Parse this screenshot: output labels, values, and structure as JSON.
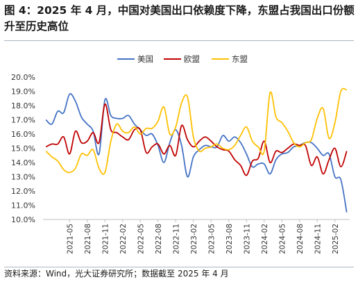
{
  "title": "图 4：2025 年 4 月，中国对美国出口依赖度下降，东盟占我国出口份额升至历史高位",
  "source": "资料来源：Wind，光大证券研究所；数据截至 2025 年 4 月",
  "chart_data": {
    "type": "line",
    "title": "",
    "xlabel": "",
    "ylabel": "",
    "ylim": [
      10,
      20
    ],
    "y_ticks": [
      "20.0%",
      "19.0%",
      "18.0%",
      "17.0%",
      "16.0%",
      "15.0%",
      "14.0%",
      "13.0%",
      "12.0%",
      "11.0%",
      "10.0%"
    ],
    "y_unit": "%",
    "x_tick_labels": [
      "2021-05",
      "2021-08",
      "2021-11",
      "2022-02",
      "2022-05",
      "2022-08",
      "2022-11",
      "2023-02",
      "2023-05",
      "2023-08",
      "2023-11",
      "2024-02",
      "2024-05",
      "2024-08",
      "2024-11",
      "2025-02"
    ],
    "legend_position": "top-center",
    "grid": false,
    "x": [
      "2021-01",
      "2021-02",
      "2021-03",
      "2021-04",
      "2021-05",
      "2021-06",
      "2021-07",
      "2021-08",
      "2021-09",
      "2021-10",
      "2021-11",
      "2021-12",
      "2022-01",
      "2022-02",
      "2022-03",
      "2022-04",
      "2022-05",
      "2022-06",
      "2022-07",
      "2022-08",
      "2022-09",
      "2022-10",
      "2022-11",
      "2022-12",
      "2023-01",
      "2023-02",
      "2023-03",
      "2023-04",
      "2023-05",
      "2023-06",
      "2023-07",
      "2023-08",
      "2023-09",
      "2023-10",
      "2023-11",
      "2023-12",
      "2024-01",
      "2024-02",
      "2024-03",
      "2024-04",
      "2024-05",
      "2024-06",
      "2024-07",
      "2024-08",
      "2024-09",
      "2024-10",
      "2024-11",
      "2024-12",
      "2025-01",
      "2025-02",
      "2025-03",
      "2025-04"
    ],
    "series": [
      {
        "name": "美国",
        "color": "#4472c4",
        "values": [
          17.0,
          16.7,
          17.6,
          17.5,
          18.8,
          18.3,
          17.2,
          16.7,
          16.2,
          14.6,
          18.4,
          17.3,
          17.1,
          17.1,
          17.3,
          16.7,
          16.3,
          15.9,
          16.0,
          15.2,
          14.0,
          15.4,
          16.3,
          15.2,
          13.0,
          14.4,
          14.9,
          15.2,
          15.1,
          15.1,
          15.9,
          15.5,
          15.8,
          15.4,
          14.6,
          13.7,
          13.9,
          13.9,
          13.2,
          14.2,
          14.6,
          14.7,
          15.1,
          15.2,
          15.4,
          15.4,
          15.0,
          14.5,
          14.6,
          13.0,
          12.8,
          10.5
        ]
      },
      {
        "name": "欧盟",
        "color": "#c00000",
        "values": [
          15.1,
          15.3,
          15.3,
          15.8,
          14.6,
          16.2,
          15.4,
          15.5,
          16.1,
          15.4,
          18.1,
          16.3,
          16.1,
          15.8,
          15.6,
          16.3,
          16.3,
          14.7,
          15.1,
          15.3,
          14.6,
          15.2,
          14.5,
          16.6,
          15.6,
          15.1,
          15.5,
          15.8,
          15.5,
          15.1,
          14.9,
          14.8,
          14.2,
          13.8,
          13.1,
          14.1,
          14.3,
          15.5,
          14.0,
          14.8,
          14.7,
          15.0,
          15.3,
          15.2,
          15.2,
          13.8,
          14.4,
          13.2,
          14.2,
          15.0,
          13.7,
          14.8
        ]
      },
      {
        "name": "东盟",
        "color": "#ffc000",
        "values": [
          14.8,
          14.4,
          14.1,
          13.5,
          13.3,
          13.6,
          14.6,
          14.5,
          14.9,
          13.6,
          13.3,
          15.5,
          16.7,
          16.2,
          16.1,
          16.5,
          16.0,
          16.4,
          16.4,
          16.9,
          17.9,
          16.0,
          16.5,
          18.2,
          18.6,
          15.8,
          14.8,
          15.0,
          15.1,
          15.3,
          15.0,
          14.9,
          15.2,
          15.9,
          16.5,
          15.5,
          15.1,
          14.8,
          18.9,
          17.2,
          16.8,
          16.2,
          15.4,
          15.1,
          15.4,
          15.6,
          17.1,
          17.8,
          15.7,
          16.8,
          19.0,
          19.1
        ]
      }
    ]
  }
}
